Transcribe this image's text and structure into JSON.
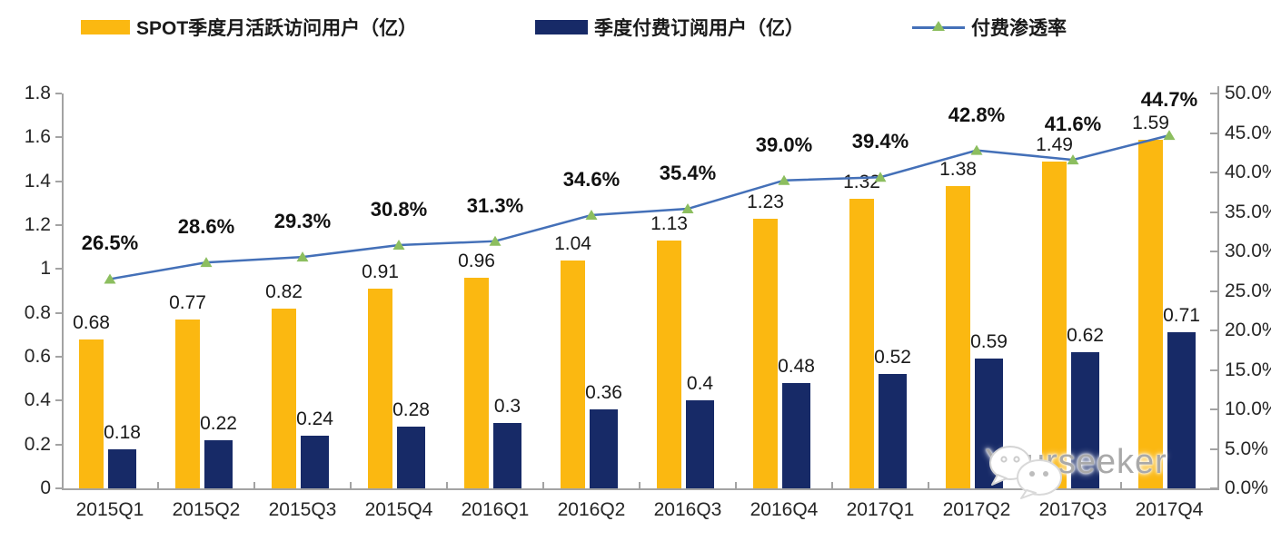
{
  "legend": {
    "items": [
      {
        "label": "SPOT季度月活跃访问用户（亿）",
        "type": "bar",
        "color": "#FBB811"
      },
      {
        "label": "季度付费订阅用户（亿）",
        "type": "bar",
        "color": "#172A67"
      },
      {
        "label": "付费渗透率",
        "type": "line",
        "color": "#4470B8",
        "marker_color": "#8CBE5F"
      }
    ]
  },
  "axes": {
    "left_ticks": [
      "1.8",
      "1.6",
      "1.4",
      "1.2",
      "1",
      "0.8",
      "0.6",
      "0.4",
      "0.2",
      "0"
    ],
    "right_ticks": [
      "50.0%",
      "45.0%",
      "40.0%",
      "35.0%",
      "30.0%",
      "25.0%",
      "20.0%",
      "15.0%",
      "10.0%",
      "5.0%",
      "0.0%"
    ]
  },
  "chart_data": {
    "type": "bar",
    "subtype": "grouped-bars-with-line-combo",
    "categories": [
      "2015Q1",
      "2015Q2",
      "2015Q3",
      "2015Q4",
      "2016Q1",
      "2016Q2",
      "2016Q3",
      "2016Q4",
      "2017Q1",
      "2017Q2",
      "2017Q3",
      "2017Q4"
    ],
    "series": [
      {
        "name": "SPOT季度月活跃访问用户（亿）",
        "type": "bar",
        "axis": "left",
        "color": "#FBB811",
        "values": [
          0.68,
          0.77,
          0.82,
          0.91,
          0.96,
          1.04,
          1.13,
          1.23,
          1.32,
          1.38,
          1.49,
          1.59
        ]
      },
      {
        "name": "季度付费订阅用户（亿）",
        "type": "bar",
        "axis": "left",
        "color": "#172A67",
        "values": [
          0.18,
          0.22,
          0.24,
          0.28,
          0.3,
          0.36,
          0.4,
          0.48,
          0.52,
          0.59,
          0.62,
          0.71
        ]
      },
      {
        "name": "付费渗透率",
        "type": "line",
        "axis": "right",
        "color": "#4470B8",
        "marker": "triangle",
        "marker_color": "#8CBE5F",
        "values": [
          26.5,
          28.6,
          29.3,
          30.8,
          31.3,
          34.6,
          35.4,
          39.0,
          39.4,
          42.8,
          41.6,
          44.7
        ],
        "labels": [
          "26.5%",
          "28.6%",
          "29.3%",
          "30.8%",
          "31.3%",
          "34.6%",
          "35.4%",
          "39.0%",
          "39.4%",
          "42.8%",
          "41.6%",
          "44.7%"
        ]
      }
    ],
    "left_axis": {
      "min": 0,
      "max": 1.8,
      "step": 0.2
    },
    "right_axis": {
      "min": 0,
      "max": 50,
      "step": 5,
      "unit": "%"
    },
    "grid": false,
    "legend_position": "top"
  },
  "watermark": {
    "text": "Yourseeker",
    "icon": "wechat-icon"
  }
}
